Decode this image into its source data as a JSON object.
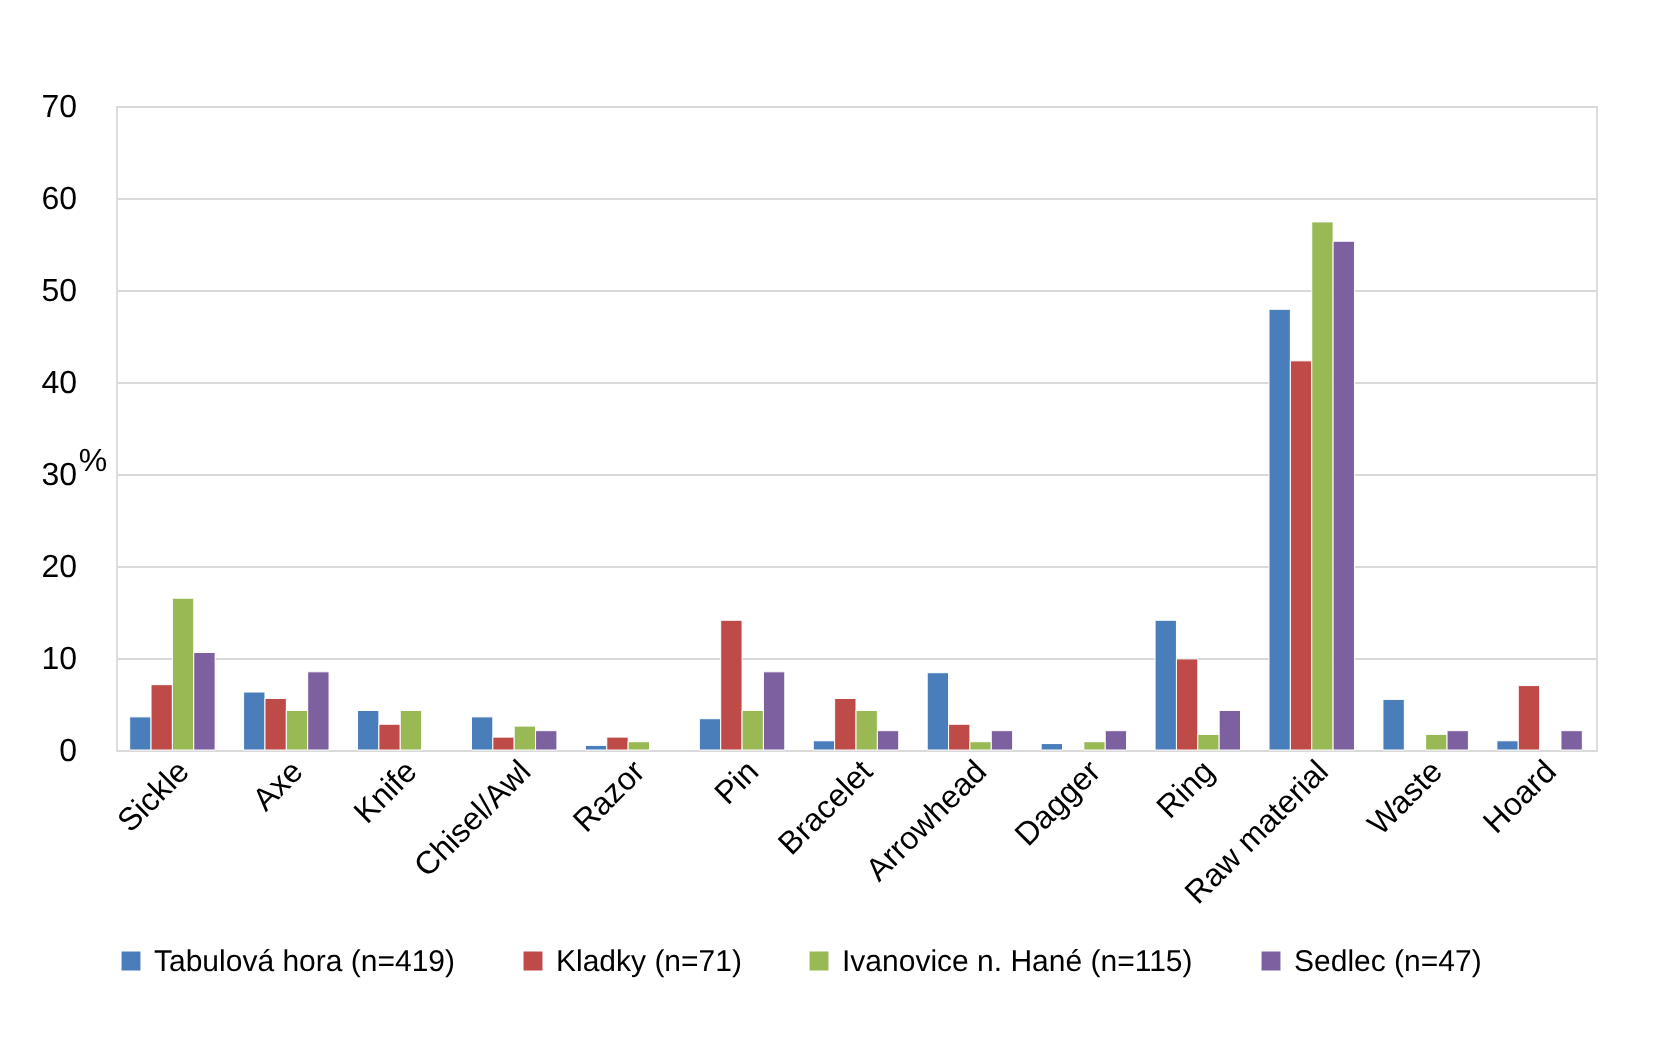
{
  "chart_data": {
    "type": "bar",
    "ylabel": "%",
    "categories": [
      "Sickle",
      "Axe",
      "Knife",
      "Chisel/Awl",
      "Razor",
      "Pin",
      "Bracelet",
      "Arrowhead",
      "Dagger",
      "Ring",
      "Raw material",
      "Waste",
      "Hoard"
    ],
    "series": [
      {
        "name": "Tabulová hora (n=419)",
        "color": "#4a7ebb",
        "values": [
          3.6,
          6.3,
          4.3,
          3.6,
          0.5,
          3.4,
          1.0,
          8.4,
          0.7,
          14.1,
          47.9,
          5.5,
          1.0
        ]
      },
      {
        "name": "Kladky (n=71)",
        "color": "#be4b48",
        "values": [
          7.1,
          5.6,
          2.8,
          1.4,
          1.4,
          14.1,
          5.6,
          2.8,
          null,
          9.9,
          42.3,
          null,
          7.0
        ]
      },
      {
        "name": "Ivanovice n. Hané (n=115)",
        "color": "#98b954",
        "values": [
          16.5,
          4.3,
          4.3,
          2.6,
          0.9,
          4.3,
          4.3,
          0.9,
          0.9,
          1.7,
          57.4,
          1.7,
          null
        ]
      },
      {
        "name": "Sedlec (n=47)",
        "color": "#7d60a0",
        "values": [
          10.6,
          8.5,
          null,
          2.1,
          null,
          8.5,
          2.1,
          2.1,
          2.1,
          4.3,
          55.3,
          2.1,
          2.1
        ]
      }
    ],
    "ylim": [
      0,
      70
    ],
    "yticks": [
      0,
      10,
      20,
      30,
      40,
      50,
      60,
      70
    ],
    "grid": "y",
    "legend": "bottom"
  }
}
